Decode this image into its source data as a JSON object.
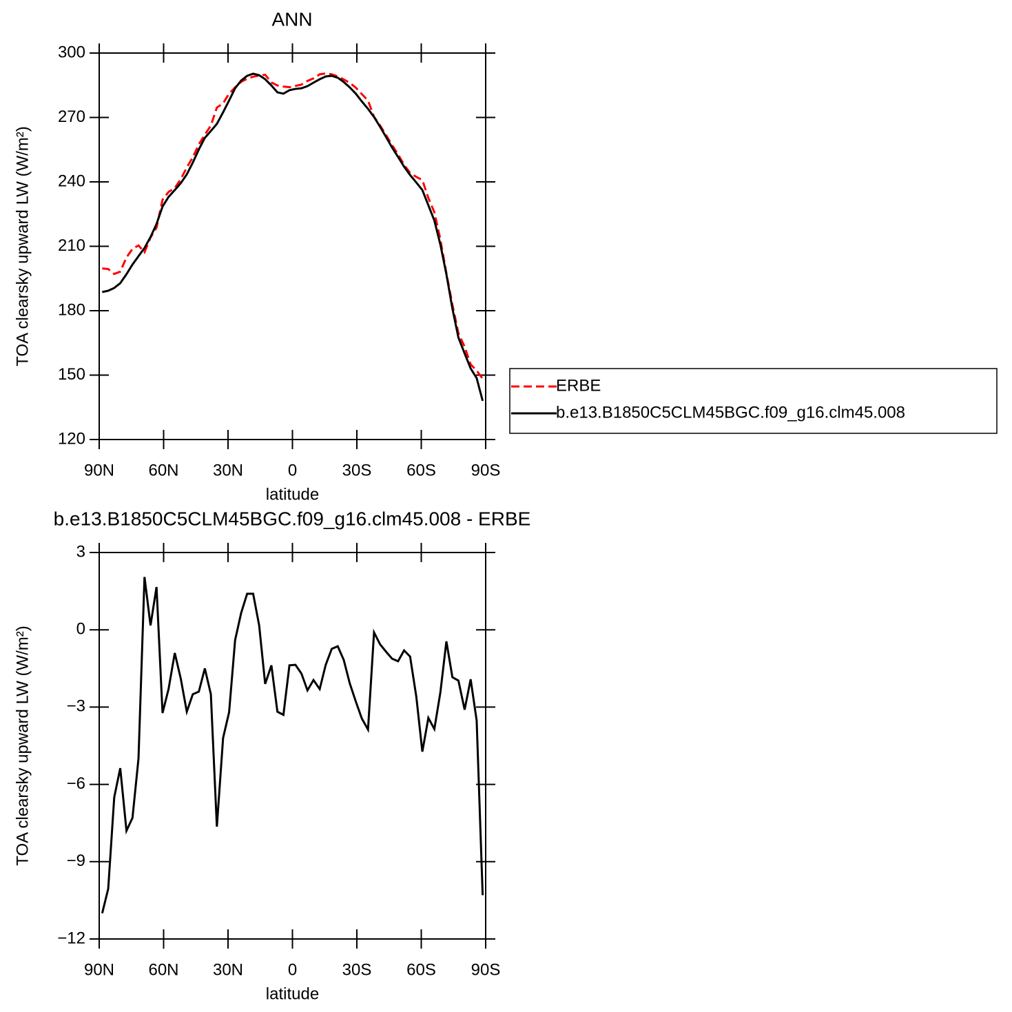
{
  "chart_data": [
    {
      "type": "line",
      "title": "ANN",
      "xlabel": "latitude",
      "ylabel": "TOA clearsky upward LW (W/m²)",
      "x": [
        88.6,
        85.8,
        83.0,
        80.2,
        77.3,
        74.5,
        71.7,
        68.9,
        66.1,
        63.3,
        60.5,
        57.7,
        54.8,
        52.0,
        49.2,
        46.4,
        43.6,
        40.8,
        38.0,
        35.2,
        32.3,
        29.5,
        26.7,
        23.9,
        21.1,
        18.3,
        15.5,
        12.7,
        9.8,
        7.0,
        4.2,
        1.4,
        -1.4,
        -4.2,
        -7.0,
        -9.8,
        -12.7,
        -15.5,
        -18.3,
        -21.1,
        -23.9,
        -26.7,
        -29.5,
        -32.3,
        -35.2,
        -38.0,
        -40.8,
        -43.6,
        -46.4,
        -49.2,
        -52.0,
        -54.8,
        -57.7,
        -60.5,
        -63.3,
        -66.1,
        -68.9,
        -71.7,
        -74.5,
        -77.3,
        -80.2,
        -83.0,
        -85.8,
        -88.6
      ],
      "xlim": [
        90,
        -90
      ],
      "xticks": [
        {
          "value": 90,
          "label": "90N"
        },
        {
          "value": 60,
          "label": "60N"
        },
        {
          "value": 30,
          "label": "30N"
        },
        0,
        {
          "value": -30,
          "label": "30S"
        },
        {
          "value": -60,
          "label": "60S"
        },
        {
          "value": -90,
          "label": "90S"
        }
      ],
      "ylim": [
        120,
        300
      ],
      "yticks": [
        120,
        150,
        180,
        210,
        240,
        270,
        300
      ],
      "legend": "right",
      "series": [
        {
          "name": "ERBE",
          "color": "#ff0000",
          "linestyle": "dashed",
          "values": [
            199.7,
            199.4,
            197.1,
            198.2,
            204.8,
            208.8,
            210.4,
            207.2,
            214.1,
            218.7,
            231.7,
            235.3,
            237.1,
            241.3,
            246.7,
            251.5,
            257.5,
            262.0,
            266.2,
            274.6,
            276.6,
            281.1,
            284.0,
            286.6,
            288.0,
            289.0,
            289.5,
            289.9,
            286.3,
            284.9,
            284.4,
            284.1,
            284.7,
            285.3,
            287.0,
            288.2,
            290.1,
            290.5,
            290.1,
            289.1,
            287.7,
            286.1,
            283.9,
            280.9,
            277.9,
            270.3,
            266.3,
            261.8,
            257.1,
            252.8,
            247.9,
            244.2,
            242.3,
            240.9,
            232.5,
            225.9,
            213.2,
            197.5,
            182.8,
            169.5,
            163.2,
            155.0,
            152.1,
            148.3
          ]
        },
        {
          "name": "b.e13.B1850C5CLM45BGC.f09_g16.clm45.008",
          "color": "#000000",
          "linestyle": "solid",
          "values": [
            188.7,
            189.3,
            190.6,
            192.8,
            197.0,
            201.5,
            205.4,
            209.2,
            214.3,
            220.4,
            228.5,
            233.0,
            236.2,
            239.4,
            243.5,
            249.0,
            255.1,
            260.5,
            263.7,
            267.0,
            272.4,
            277.9,
            283.6,
            287.2,
            289.4,
            290.4,
            289.7,
            287.8,
            284.9,
            281.7,
            281.1,
            282.7,
            283.3,
            283.6,
            284.6,
            286.2,
            287.8,
            289.1,
            289.4,
            288.5,
            286.5,
            284.0,
            281.1,
            277.5,
            274.0,
            270.2,
            265.7,
            260.9,
            256.0,
            251.6,
            247.1,
            243.2,
            239.7,
            236.2,
            229.1,
            222.0,
            210.8,
            197.0,
            181.0,
            167.5,
            160.1,
            153.1,
            148.6,
            138.0
          ]
        }
      ]
    },
    {
      "type": "line",
      "title": "b.e13.B1850C5CLM45BGC.f09_g16.clm45.008 - ERBE",
      "xlabel": "latitude",
      "ylabel": "TOA clearsky upward LW (W/m²)",
      "x": [
        88.6,
        85.8,
        83.0,
        80.2,
        77.3,
        74.5,
        71.7,
        68.9,
        66.1,
        63.3,
        60.5,
        57.7,
        54.8,
        52.0,
        49.2,
        46.4,
        43.6,
        40.8,
        38.0,
        35.2,
        32.3,
        29.5,
        26.7,
        23.9,
        21.1,
        18.3,
        15.5,
        12.7,
        9.8,
        7.0,
        4.2,
        1.4,
        -1.4,
        -4.2,
        -7.0,
        -9.8,
        -12.7,
        -15.5,
        -18.3,
        -21.1,
        -23.9,
        -26.7,
        -29.5,
        -32.3,
        -35.2,
        -38.0,
        -40.8,
        -43.6,
        -46.4,
        -49.2,
        -52.0,
        -54.8,
        -57.7,
        -60.5,
        -63.3,
        -66.1,
        -68.9,
        -71.7,
        -74.5,
        -77.3,
        -80.2,
        -83.0,
        -85.8,
        -88.6
      ],
      "xlim": [
        90,
        -90
      ],
      "xticks": [
        {
          "value": 90,
          "label": "90N"
        },
        {
          "value": 60,
          "label": "60N"
        },
        {
          "value": 30,
          "label": "30N"
        },
        0,
        {
          "value": -30,
          "label": "30S"
        },
        {
          "value": -60,
          "label": "60S"
        },
        {
          "value": -90,
          "label": "90S"
        }
      ],
      "ylim": [
        -12,
        3
      ],
      "yticks": [
        {
          "value": -12,
          "label": "−12"
        },
        {
          "value": -9,
          "label": "−9"
        },
        {
          "value": -6,
          "label": "−6"
        },
        {
          "value": -3,
          "label": "−3"
        },
        0,
        3
      ],
      "series": [
        {
          "color": "#000000",
          "linestyle": "solid",
          "values": [
            -11.0,
            -10.05,
            -6.5,
            -5.37,
            -7.8,
            -7.3,
            -5.0,
            2.05,
            0.17,
            1.66,
            -3.23,
            -2.3,
            -0.9,
            -1.9,
            -3.18,
            -2.5,
            -2.4,
            -1.5,
            -2.5,
            -7.64,
            -4.2,
            -3.2,
            -0.4,
            0.65,
            1.4,
            1.4,
            0.17,
            -2.1,
            -1.38,
            -3.18,
            -3.3,
            -1.38,
            -1.36,
            -1.7,
            -2.35,
            -1.95,
            -2.3,
            -1.36,
            -0.74,
            -0.64,
            -1.17,
            -2.08,
            -2.78,
            -3.44,
            -3.87,
            -0.1,
            -0.56,
            -0.85,
            -1.12,
            -1.22,
            -0.8,
            -1.04,
            -2.6,
            -4.73,
            -3.42,
            -3.85,
            -2.43,
            -0.45,
            -1.84,
            -1.97,
            -3.1,
            -1.92,
            -3.52,
            -10.3
          ]
        }
      ]
    }
  ]
}
